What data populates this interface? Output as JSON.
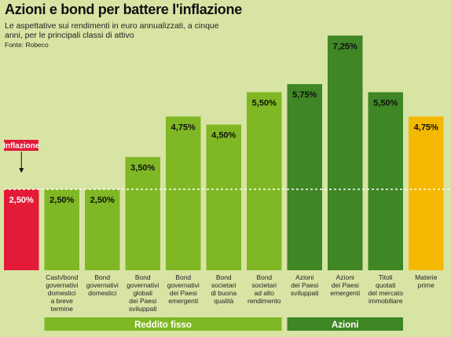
{
  "header": {
    "title": "Azioni e bond per battere l'inflazione",
    "subtitle": "Le aspettative sui rendimenti in euro annualizzati, a cinque anni, per le principali classi di attivo",
    "source": "Fonte: Robeco"
  },
  "colors": {
    "background": "#d8e4a4",
    "inflazione": "#e31b39",
    "reddito_fisso": "#7fb824",
    "azioni": "#3f8624",
    "materie_prime": "#f5b800"
  },
  "chart_data": {
    "type": "bar",
    "title": "Azioni e bond per battere l'inflazione",
    "subtitle": "Le aspettative sui rendimenti in euro annualizzati, a cinque anni, per le principali classi di attivo",
    "reference_line": {
      "label": "Inflazione",
      "value": 2.5,
      "style": "dashed"
    },
    "ylim": [
      0,
      7.5
    ],
    "grid": false,
    "categories": [
      "",
      "Cash/bond governativi domestici a breve termine",
      "Bond governativi domestici",
      "Bond governativi globali dei Paesi sviluppati",
      "Bond governativi dei Paesi emergenti",
      "Bond societari di buona qualità",
      "Bond societari ad alto rendimento",
      "Azioni dei Paesi sviluppati",
      "Azioni dei Paesi emergenti",
      "Titoli quotati del mercato immobiliare",
      "Materie prime"
    ],
    "category_lines": [
      [],
      [
        "Cash/bond",
        "governativi",
        "domestici",
        "a breve",
        "termine"
      ],
      [
        "Bond",
        "governativi",
        "domestici"
      ],
      [
        "Bond",
        "governativi",
        "globali",
        "dei Paesi",
        "sviluppati"
      ],
      [
        "Bond",
        "governativi",
        "dei Paesi",
        "emergenti"
      ],
      [
        "Bond",
        "societari",
        "di buona",
        "qualità"
      ],
      [
        "Bond",
        "societari",
        "ad alto",
        "rendimento"
      ],
      [
        "Azioni",
        "dei Paesi",
        "sviluppati"
      ],
      [
        "Azioni",
        "dei Paesi",
        "emergenti"
      ],
      [
        "Titoli",
        "quotati",
        "del mercato",
        "immobiliare"
      ],
      [
        "Materie",
        "prime"
      ]
    ],
    "values": [
      2.5,
      2.5,
      2.5,
      3.5,
      4.75,
      4.5,
      5.5,
      5.75,
      7.25,
      5.5,
      4.75
    ],
    "value_labels": [
      "2,50%",
      "2,50%",
      "2,50%",
      "3,50%",
      "4,75%",
      "4,50%",
      "5,50%",
      "5,75%",
      "7,25%",
      "5,50%",
      "4,75%"
    ],
    "groups": [
      "inflazione",
      "reddito_fisso",
      "reddito_fisso",
      "reddito_fisso",
      "reddito_fisso",
      "reddito_fisso",
      "reddito_fisso",
      "azioni",
      "azioni",
      "azioni",
      "materie_prime"
    ],
    "group_labels": [
      {
        "name": "Reddito fisso",
        "from": 1,
        "to": 6,
        "group": "reddito_fisso"
      },
      {
        "name": "Azioni",
        "from": 7,
        "to": 9,
        "group": "azioni"
      }
    ]
  }
}
